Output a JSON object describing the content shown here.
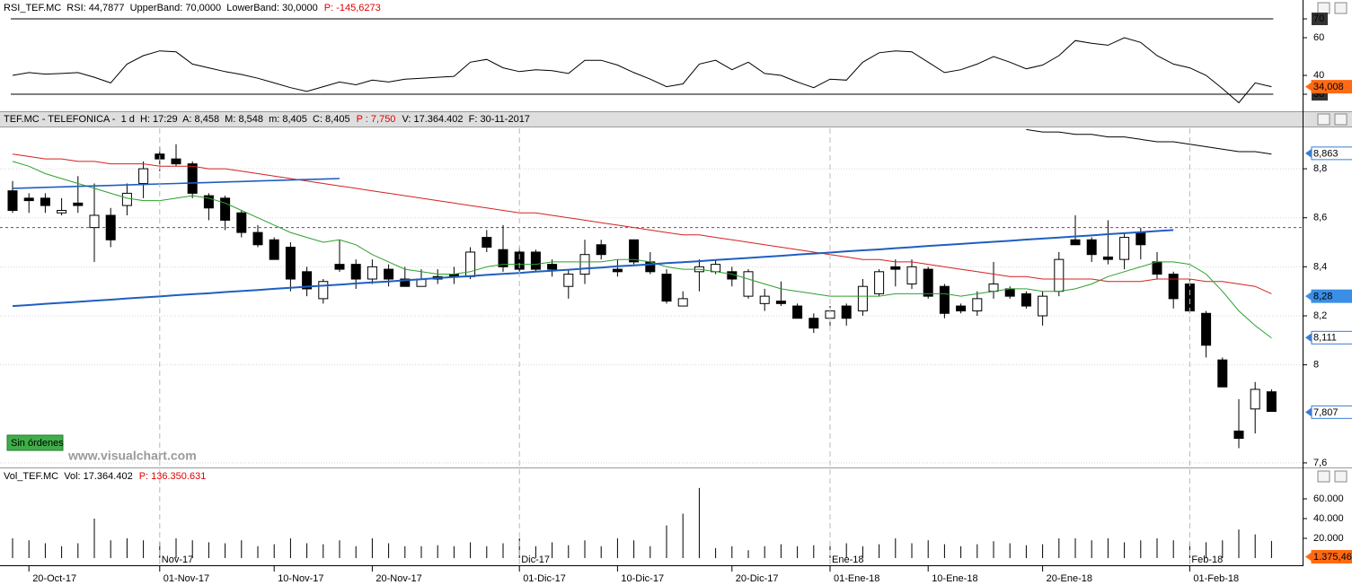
{
  "ui": {
    "watermark": "www.visualchart.com",
    "button": "Sin órdenes"
  },
  "chart_data": [
    {
      "type": "line",
      "header": [
        {
          "text": "RSI_TEF.MC  RSI: 44,7877  UpperBand: 70,0000  LowerBand: 30,0000"
        },
        {
          "text": "P: -145,6273",
          "color": "#e00000"
        }
      ],
      "color": "#000000",
      "upper_band": 70,
      "lower_band": 30,
      "ylim": [
        20.5,
        76.2
      ],
      "yticks": [
        70,
        60,
        40,
        30
      ],
      "grid": false,
      "values": [
        40,
        41.5,
        40.7,
        41,
        41.5,
        39,
        36,
        46,
        50.5,
        53,
        52.5,
        46,
        44,
        42,
        40.5,
        38.5,
        36,
        33.5,
        31.5,
        34,
        36.5,
        35,
        37.5,
        36.5,
        38,
        38.5,
        39,
        39.5,
        47,
        48.5,
        44,
        42,
        43,
        42.5,
        41,
        48,
        48,
        45.5,
        41.5,
        38,
        34,
        35.5,
        46,
        48,
        43,
        47,
        41,
        40,
        36.5,
        33.5,
        38,
        37.5,
        47,
        52,
        53,
        52.5,
        47,
        41.5,
        43,
        46,
        50,
        47,
        43.5,
        45.5,
        50.5,
        58.5,
        57,
        56,
        60,
        57.5,
        50.5,
        46,
        44,
        40,
        33,
        25.5,
        36,
        34
      ],
      "tags": [
        {
          "value": 34.008,
          "label": "34,008",
          "style": "filled",
          "color": "#ff6a13"
        }
      ]
    },
    {
      "type": "candlestick",
      "header": [
        {
          "text": "TEF.MC - TELEFONICA -  1 d  H: 17:29  A: 8,458  M: 8,548  m: 8,405  C: 8,405"
        },
        {
          "text": "P : 7,750",
          "color": "#e00000"
        },
        {
          "text": "V: 17.364.402  F: 30-11-2017"
        }
      ],
      "ylim": [
        7.585,
        8.965
      ],
      "yticks": [
        {
          "value": 8.8,
          "label": "8,8"
        },
        {
          "value": 8.6,
          "label": "8,6"
        },
        {
          "value": 8.4,
          "label": "8,4"
        },
        {
          "value": 8.2,
          "label": "8,2"
        },
        8,
        {
          "value": 7.6,
          "label": "7,6"
        }
      ],
      "grid": true,
      "up_color": "#ffffff",
      "down_color": "#000000",
      "open": [
        8.71,
        8.68,
        8.68,
        8.62,
        8.66,
        8.56,
        8.61,
        8.65,
        8.74,
        8.86,
        8.84,
        8.82,
        8.69,
        8.68,
        8.62,
        8.54,
        8.51,
        8.48,
        8.38,
        8.27,
        8.41,
        8.41,
        8.35,
        8.39,
        8.35,
        8.32,
        8.36,
        8.37,
        8.36,
        8.52,
        8.47,
        8.46,
        8.46,
        8.41,
        8.32,
        8.37,
        8.49,
        8.39,
        8.51,
        8.42,
        8.37,
        8.24,
        8.38,
        8.38,
        8.38,
        8.28,
        8.25,
        8.26,
        8.24,
        8.19,
        8.19,
        8.24,
        8.22,
        8.29,
        8.4,
        8.33,
        8.39,
        8.32,
        8.24,
        8.22,
        8.3,
        8.31,
        8.29,
        8.2,
        8.3,
        8.51,
        8.51,
        8.44,
        8.43,
        8.54,
        8.42,
        8.37,
        8.33,
        8.21,
        8.02,
        7.73,
        7.82,
        7.89
      ],
      "high": [
        8.75,
        8.7,
        8.7,
        8.68,
        8.77,
        8.74,
        8.64,
        8.74,
        8.83,
        8.89,
        8.9,
        8.83,
        8.7,
        8.69,
        8.63,
        8.57,
        8.52,
        8.5,
        8.4,
        8.35,
        8.51,
        8.43,
        8.43,
        8.41,
        8.4,
        8.39,
        8.39,
        8.4,
        8.48,
        8.55,
        8.57,
        8.48,
        8.47,
        8.43,
        8.39,
        8.51,
        8.51,
        8.43,
        8.51,
        8.46,
        8.39,
        8.3,
        8.43,
        8.43,
        8.4,
        8.39,
        8.31,
        8.34,
        8.25,
        8.21,
        8.24,
        8.25,
        8.35,
        8.39,
        8.43,
        8.43,
        8.4,
        8.33,
        8.25,
        8.3,
        8.42,
        8.32,
        8.3,
        8.3,
        8.46,
        8.61,
        8.52,
        8.59,
        8.54,
        8.56,
        8.46,
        8.38,
        8.35,
        8.22,
        8.03,
        7.86,
        7.93,
        7.9
      ],
      "low": [
        8.62,
        8.62,
        8.62,
        8.61,
        8.62,
        8.42,
        8.48,
        8.61,
        8.68,
        8.79,
        8.81,
        8.68,
        8.59,
        8.55,
        8.52,
        8.48,
        8.43,
        8.3,
        8.28,
        8.25,
        8.38,
        8.31,
        8.33,
        8.32,
        8.32,
        8.32,
        8.33,
        8.33,
        8.35,
        8.46,
        8.38,
        8.38,
        8.38,
        8.36,
        8.27,
        8.33,
        8.43,
        8.36,
        8.41,
        8.37,
        8.25,
        8.24,
        8.3,
        8.37,
        8.32,
        8.27,
        8.22,
        8.24,
        8.19,
        8.13,
        8.16,
        8.16,
        8.2,
        8.28,
        8.32,
        8.31,
        8.27,
        8.19,
        8.21,
        8.2,
        8.27,
        8.27,
        8.23,
        8.16,
        8.28,
        8.49,
        8.42,
        8.41,
        8.39,
        8.43,
        8.35,
        8.23,
        8.21,
        8.03,
        7.91,
        7.66,
        7.72,
        7.81
      ],
      "close": [
        8.63,
        8.67,
        8.65,
        8.63,
        8.65,
        8.61,
        8.51,
        8.7,
        8.8,
        8.84,
        8.82,
        8.7,
        8.64,
        8.59,
        8.54,
        8.49,
        8.43,
        8.35,
        8.31,
        8.34,
        8.39,
        8.35,
        8.4,
        8.35,
        8.32,
        8.35,
        8.35,
        8.36,
        8.46,
        8.48,
        8.4,
        8.39,
        8.39,
        8.39,
        8.37,
        8.45,
        8.45,
        8.38,
        8.42,
        8.38,
        8.26,
        8.27,
        8.4,
        8.41,
        8.35,
        8.38,
        8.28,
        8.25,
        8.19,
        8.15,
        8.22,
        8.19,
        8.32,
        8.38,
        8.39,
        8.4,
        8.28,
        8.21,
        8.22,
        8.27,
        8.33,
        8.28,
        8.24,
        8.28,
        8.43,
        8.49,
        8.45,
        8.43,
        8.52,
        8.49,
        8.37,
        8.27,
        8.22,
        8.08,
        7.91,
        7.7,
        7.9,
        7.81
      ],
      "hline": {
        "value": 8.56,
        "color": "#9b2c8f"
      },
      "lines": [
        {
          "color": "#d42020",
          "width": 1,
          "values": [
            8.86,
            8.85,
            8.84,
            8.84,
            8.83,
            8.83,
            8.82,
            8.82,
            8.82,
            8.81,
            8.81,
            8.81,
            8.8,
            8.8,
            8.79,
            8.78,
            8.77,
            8.76,
            8.75,
            8.74,
            8.73,
            8.72,
            8.71,
            8.7,
            8.69,
            8.68,
            8.67,
            8.66,
            8.65,
            8.64,
            8.63,
            8.62,
            8.62,
            8.61,
            8.6,
            8.59,
            8.58,
            8.57,
            8.56,
            8.55,
            8.54,
            8.53,
            8.53,
            8.52,
            8.51,
            8.5,
            8.49,
            8.48,
            8.47,
            8.46,
            8.45,
            8.44,
            8.43,
            8.43,
            8.42,
            8.42,
            8.41,
            8.4,
            8.39,
            8.38,
            8.37,
            8.36,
            8.36,
            8.35,
            8.35,
            8.35,
            8.35,
            8.34,
            8.34,
            8.34,
            8.35,
            8.35,
            8.35,
            8.34,
            8.34,
            8.33,
            8.32,
            8.29
          ]
        },
        {
          "color": "#2ca02c",
          "width": 1,
          "values": [
            8.83,
            8.81,
            8.78,
            8.76,
            8.74,
            8.72,
            8.7,
            8.68,
            8.67,
            8.67,
            8.68,
            8.69,
            8.68,
            8.66,
            8.63,
            8.6,
            8.57,
            8.54,
            8.52,
            8.5,
            8.51,
            8.49,
            8.45,
            8.42,
            8.39,
            8.38,
            8.37,
            8.37,
            8.38,
            8.4,
            8.41,
            8.41,
            8.41,
            8.42,
            8.42,
            8.42,
            8.42,
            8.43,
            8.43,
            8.42,
            8.4,
            8.39,
            8.39,
            8.38,
            8.37,
            8.35,
            8.33,
            8.31,
            8.3,
            8.29,
            8.28,
            8.28,
            8.28,
            8.28,
            8.29,
            8.29,
            8.29,
            8.29,
            8.28,
            8.29,
            8.3,
            8.31,
            8.31,
            8.3,
            8.3,
            8.31,
            8.33,
            8.36,
            8.38,
            8.4,
            8.42,
            8.42,
            8.41,
            8.37,
            8.3,
            8.22,
            8.16,
            8.11
          ]
        },
        {
          "color": "#000000",
          "width": 1,
          "values": [
            null,
            null,
            null,
            null,
            null,
            null,
            null,
            null,
            null,
            null,
            null,
            null,
            null,
            null,
            null,
            null,
            null,
            null,
            null,
            null,
            null,
            null,
            null,
            null,
            null,
            null,
            null,
            null,
            null,
            null,
            null,
            null,
            null,
            null,
            null,
            null,
            null,
            null,
            null,
            null,
            null,
            null,
            null,
            null,
            null,
            null,
            null,
            null,
            null,
            null,
            null,
            null,
            null,
            null,
            null,
            null,
            null,
            null,
            null,
            null,
            null,
            null,
            8.96,
            8.95,
            8.95,
            8.94,
            8.94,
            8.93,
            8.93,
            8.92,
            8.91,
            8.91,
            8.9,
            8.89,
            8.88,
            8.87,
            8.87,
            8.86
          ]
        },
        {
          "color": "#1f5fbf",
          "width": 1.6,
          "values": [
            8.72,
            8.722,
            8.724,
            8.726,
            8.728,
            8.73,
            8.732,
            8.734,
            8.736,
            8.738,
            8.74,
            8.742,
            8.744,
            8.746,
            8.748,
            8.75,
            8.752,
            8.754,
            8.756,
            8.758,
            8.76,
            null,
            null,
            null,
            null,
            null,
            null,
            null,
            null,
            null,
            null,
            null,
            null,
            null,
            null,
            null,
            null,
            null,
            null,
            null,
            null,
            null,
            null,
            null,
            null,
            null,
            null,
            null,
            null,
            null,
            null,
            null,
            null,
            null,
            null,
            null,
            null,
            null,
            null,
            null,
            null,
            null,
            null,
            null,
            null,
            null,
            null,
            null,
            null,
            null,
            null,
            null,
            null,
            null,
            null,
            null,
            null,
            null
          ]
        },
        {
          "color": "#1f5fbf",
          "width": 2,
          "values": [
            8.24,
            8.244,
            8.249,
            8.253,
            8.257,
            8.262,
            8.266,
            8.271,
            8.275,
            8.279,
            8.284,
            8.288,
            8.292,
            8.297,
            8.301,
            8.305,
            8.31,
            8.314,
            8.319,
            8.323,
            8.327,
            8.332,
            8.336,
            8.34,
            8.345,
            8.349,
            8.354,
            8.358,
            8.362,
            8.367,
            8.371,
            8.375,
            8.38,
            8.384,
            8.388,
            8.393,
            8.397,
            8.402,
            8.406,
            8.41,
            8.415,
            8.419,
            8.423,
            8.428,
            8.432,
            8.436,
            8.441,
            8.445,
            8.45,
            8.454,
            8.458,
            8.463,
            8.467,
            8.471,
            8.476,
            8.48,
            8.485,
            8.489,
            8.493,
            8.498,
            8.502,
            8.506,
            8.511,
            8.515,
            8.519,
            8.524,
            8.528,
            8.533,
            8.537,
            8.541,
            8.546,
            8.55,
            null,
            null,
            null,
            null,
            null,
            null
          ]
        }
      ],
      "tags": [
        {
          "value": 8.863,
          "label": "8,863",
          "style": "outline",
          "color": "#3a7bd5"
        },
        {
          "value": 8.28,
          "label": "8,28",
          "style": "filled",
          "color": "#3a8ee6"
        },
        {
          "value": 8.111,
          "label": "8,111",
          "style": "outline",
          "color": "#3a7bd5"
        },
        {
          "value": 7.807,
          "label": "7,807",
          "style": "outline",
          "color": "#3a7bd5"
        }
      ]
    },
    {
      "type": "bar",
      "header": [
        {
          "text": "Vol_TEF.MC  Vol: 17.364.402"
        },
        {
          "text": "P: 136.350.631",
          "color": "#e00000"
        }
      ],
      "color": "#000000",
      "ylim": [
        0,
        74500
      ],
      "yticks": [
        {
          "value": 60000,
          "label": "60.000"
        },
        {
          "value": 40000,
          "label": "40.000"
        },
        {
          "value": 20000,
          "label": "20.000"
        }
      ],
      "grid": false,
      "categories": [
        null,
        "20-Oct-17",
        null,
        null,
        null,
        null,
        null,
        null,
        null,
        "01-Nov-17",
        null,
        null,
        null,
        null,
        null,
        null,
        "10-Nov-17",
        null,
        null,
        null,
        null,
        null,
        "20-Nov-17",
        null,
        null,
        null,
        null,
        null,
        null,
        null,
        null,
        "01-Dic-17",
        null,
        null,
        null,
        null,
        null,
        "10-Dic-17",
        null,
        null,
        null,
        null,
        null,
        null,
        "20-Dic-17",
        null,
        null,
        null,
        null,
        null,
        "01-Ene-18",
        null,
        null,
        null,
        null,
        null,
        "10-Ene-18",
        null,
        null,
        null,
        null,
        null,
        null,
        "20-Ene-18",
        null,
        null,
        null,
        null,
        null,
        null,
        null,
        null,
        "01-Feb-18",
        null,
        null,
        null,
        null,
        null
      ],
      "month_labels": [
        null,
        null,
        null,
        null,
        null,
        null,
        null,
        null,
        null,
        "Nov-17",
        null,
        null,
        null,
        null,
        null,
        null,
        null,
        null,
        null,
        null,
        null,
        null,
        null,
        null,
        null,
        null,
        null,
        null,
        null,
        null,
        null,
        "Dic-17",
        null,
        null,
        null,
        null,
        null,
        null,
        null,
        null,
        null,
        null,
        null,
        null,
        null,
        null,
        null,
        null,
        null,
        null,
        "Ene-18",
        null,
        null,
        null,
        null,
        null,
        null,
        null,
        null,
        null,
        null,
        null,
        null,
        null,
        null,
        null,
        null,
        null,
        null,
        null,
        null,
        null,
        "Feb-18",
        null,
        null,
        null,
        null,
        null
      ],
      "values": [
        20000,
        18000,
        15000,
        12000,
        15000,
        40000,
        18000,
        20000,
        18000,
        16000,
        20000,
        18000,
        16000,
        15000,
        18000,
        12000,
        14000,
        20000,
        15000,
        14000,
        18000,
        12000,
        20000,
        15000,
        12000,
        12000,
        13000,
        12000,
        16000,
        12000,
        15000,
        20000,
        12000,
        16000,
        13000,
        18000,
        12000,
        20000,
        18000,
        12000,
        33000,
        45000,
        71000,
        10000,
        12000,
        8000,
        12000,
        14000,
        12000,
        13000,
        16000,
        15000,
        12000,
        14000,
        20000,
        15000,
        18000,
        14000,
        12000,
        14000,
        17000,
        15000,
        13000,
        14000,
        20000,
        20000,
        18000,
        20000,
        16000,
        18000,
        20000,
        18000,
        15000,
        16000,
        18000,
        29000,
        24000,
        17364
      ],
      "tags": [
        {
          "value": 1375.46,
          "label": "1.375,46",
          "style": "filled",
          "color": "#ff6a13"
        }
      ]
    }
  ]
}
